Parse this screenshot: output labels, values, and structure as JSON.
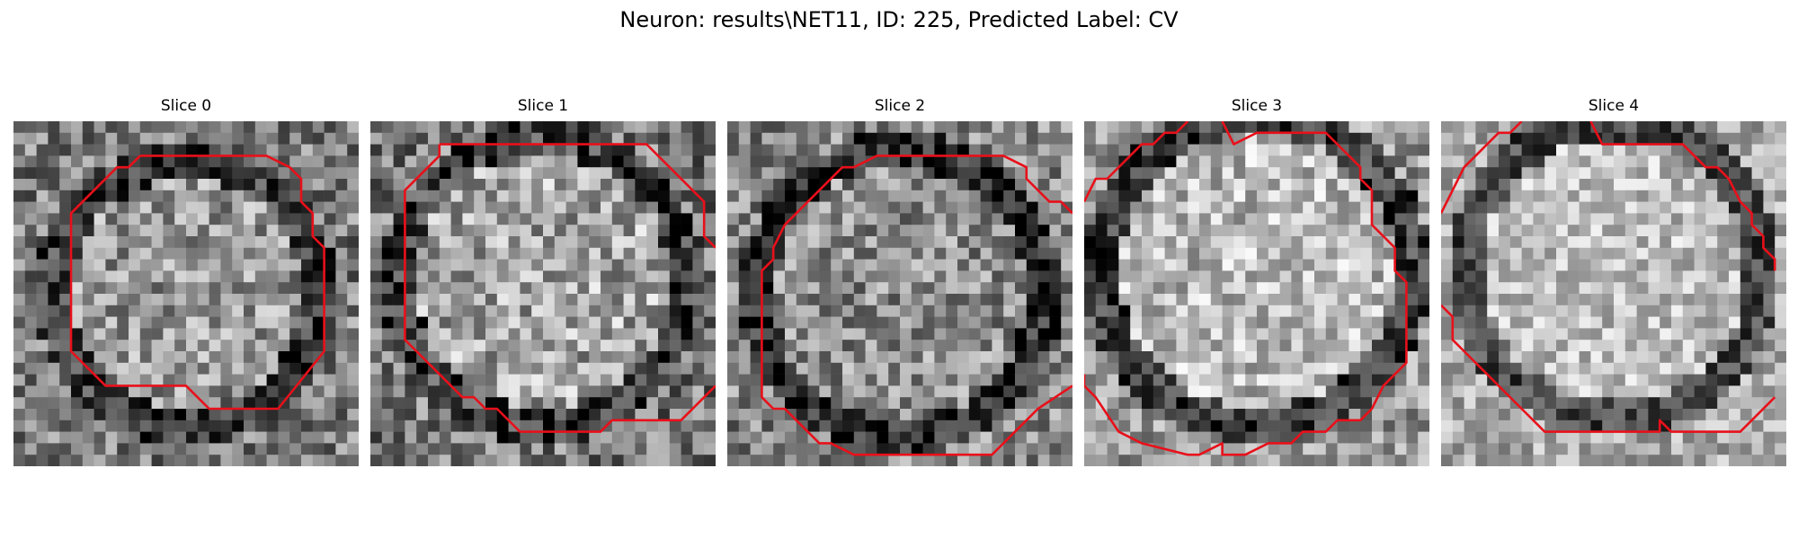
{
  "figure": {
    "title": "Neuron: results\\NET11, ID: 225, Predicted Label: CV"
  },
  "slices": [
    {
      "label": "Slice 0",
      "contour_color": "#e8101a"
    },
    {
      "label": "Slice 1",
      "contour_color": "#e8101a"
    },
    {
      "label": "Slice 2",
      "contour_color": "#e8101a"
    },
    {
      "label": "Slice 3",
      "contour_color": "#e8101a"
    },
    {
      "label": "Slice 4",
      "contour_color": "#e8101a"
    }
  ],
  "colormap": "gray"
}
